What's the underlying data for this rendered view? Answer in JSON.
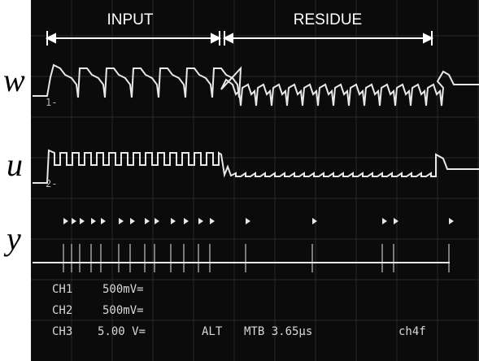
{
  "margin_labels": [
    "w",
    "u",
    "y"
  ],
  "header": {
    "segments": [
      "INPUT",
      "RESIDUE"
    ]
  },
  "markers": [
    "1-",
    "2-"
  ],
  "readout": {
    "rows": [
      [
        "CH1",
        "500mV="
      ],
      [
        "CH2",
        "500mV="
      ],
      [
        "CH3",
        "5.00 V=",
        "ALT",
        "MTB 3.65µs",
        "ch4f"
      ]
    ]
  }
}
